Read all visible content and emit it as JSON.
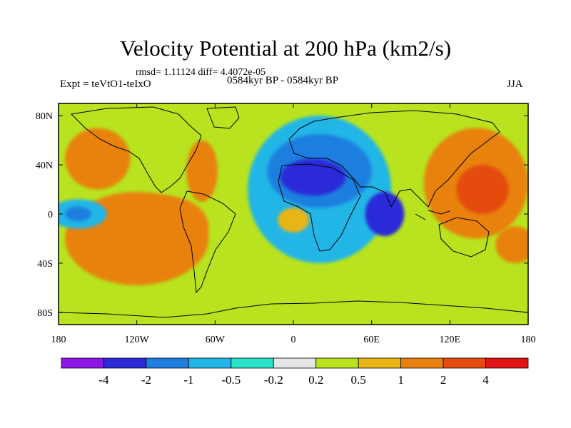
{
  "chart_data": {
    "type": "heatmap",
    "title": "Velocity Potential at 200 hPa (km2/s)",
    "stats": "rmsd= 1.11124 diff= 4.4072e-05",
    "experiment": "Expt = teVtO1-teIxO",
    "period": "0584kyr BP - 0584kyr BP",
    "season": "JJA",
    "x_range": [
      -180,
      180
    ],
    "y_range": [
      -90,
      90
    ],
    "x_ticks": [
      {
        "value": -180,
        "label": "180"
      },
      {
        "value": -120,
        "label": "120W"
      },
      {
        "value": -60,
        "label": "60W"
      },
      {
        "value": 0,
        "label": "0"
      },
      {
        "value": 60,
        "label": "60E"
      },
      {
        "value": 120,
        "label": "120E"
      },
      {
        "value": 180,
        "label": "180"
      }
    ],
    "y_ticks": [
      {
        "value": 80,
        "label": "80N"
      },
      {
        "value": 40,
        "label": "40N"
      },
      {
        "value": 0,
        "label": "0"
      },
      {
        "value": -40,
        "label": "40S"
      },
      {
        "value": -80,
        "label": "80S"
      }
    ],
    "levels": [
      "-4",
      "-2",
      "-1",
      "-0.5",
      "-0.2",
      "0.2",
      "0.5",
      "1",
      "2",
      "4"
    ],
    "colors": [
      "#8c19e6",
      "#2a2ad8",
      "#1f7fe0",
      "#22b6e6",
      "#2ae2c8",
      "#e6e6e6",
      "#b8e31e",
      "#e8b514",
      "#e8820f",
      "#e54b10",
      "#e01414"
    ],
    "field_regions": [
      {
        "name": "east-pacific-positive",
        "level": 8,
        "lon": -120,
        "lat": -20,
        "rlon": 55,
        "rlat": 38
      },
      {
        "name": "east-pacific-core",
        "level": 8,
        "lon": -100,
        "lat": -10,
        "rlon": 35,
        "rlat": 25
      },
      {
        "name": "north-america-positive",
        "level": 8,
        "lon": -150,
        "lat": 45,
        "rlon": 25,
        "rlat": 25
      },
      {
        "name": "north-america-east",
        "level": 8,
        "lon": -70,
        "lat": 35,
        "rlon": 12,
        "rlat": 25
      },
      {
        "name": "central-pacific-negative",
        "level": 3,
        "lon": -165,
        "lat": 0,
        "rlon": 22,
        "rlat": 12
      },
      {
        "name": "central-pacific-core",
        "level": 2,
        "lon": -165,
        "lat": 0,
        "rlon": 10,
        "rlat": 6
      },
      {
        "name": "europe-africa-negative",
        "level": 3,
        "lon": 20,
        "lat": 20,
        "rlon": 55,
        "rlat": 60
      },
      {
        "name": "europe-africa-mid",
        "level": 2,
        "lon": 20,
        "lat": 35,
        "rlon": 40,
        "rlat": 30
      },
      {
        "name": "mediterranean-core",
        "level": 1,
        "lon": 15,
        "lat": 30,
        "rlon": 25,
        "rlat": 15
      },
      {
        "name": "indian-ocean-core",
        "level": 1,
        "lon": 70,
        "lat": 0,
        "rlon": 15,
        "rlat": 18
      },
      {
        "name": "asia-pacific-positive",
        "level": 8,
        "lon": 140,
        "lat": 25,
        "rlon": 40,
        "rlat": 45
      },
      {
        "name": "asia-pacific-core",
        "level": 9,
        "lon": 145,
        "lat": 20,
        "rlon": 20,
        "rlat": 20
      },
      {
        "name": "south-atlantic-positive",
        "level": 7,
        "lon": 0,
        "lat": -5,
        "rlon": 12,
        "rlat": 10
      },
      {
        "name": "australia-east-positive",
        "level": 8,
        "lon": 170,
        "lat": -25,
        "rlon": 15,
        "rlat": 15
      }
    ]
  }
}
